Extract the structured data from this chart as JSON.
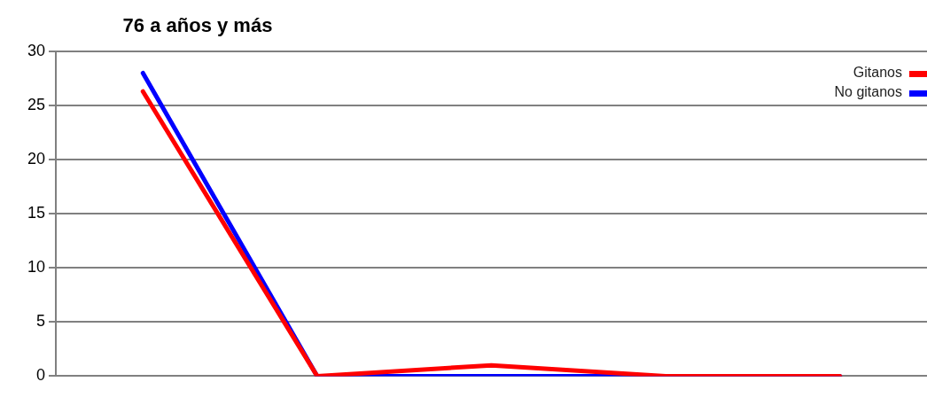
{
  "chart_data": {
    "type": "line",
    "title": "76 a años y más",
    "categories": [
      null,
      null,
      null,
      null,
      null
    ],
    "series": [
      {
        "name": "Gitanos",
        "color": "#ff0000",
        "values": [
          26.3,
          0,
          1,
          0,
          0
        ]
      },
      {
        "name": "No gitanos",
        "color": "#0000ff",
        "values": [
          28,
          0,
          0,
          0,
          0
        ]
      }
    ],
    "ylim": [
      0,
      30
    ],
    "yticks": [
      0,
      5,
      10,
      15,
      20,
      25,
      30
    ],
    "grid": "y",
    "legend": "top right",
    "marker": "none",
    "line_style": "solid"
  }
}
